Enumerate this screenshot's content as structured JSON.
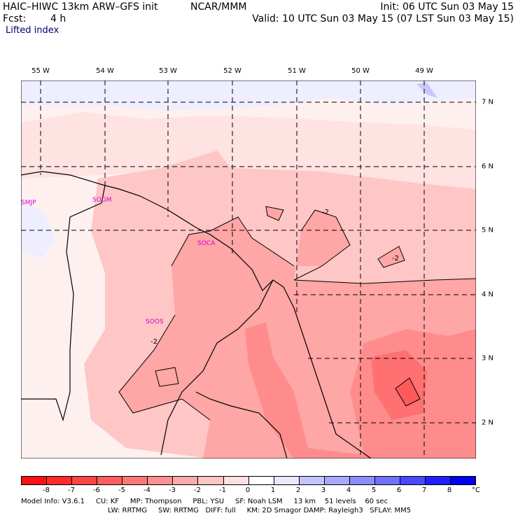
{
  "header": {
    "model_title": "HAIC–HIWC 13km ARW–GFS init",
    "org": "NCAR/MMM",
    "init": "Init: 06 UTC Sun 03 May 15",
    "fcst_label": "Fcst:",
    "fcst_value": "4 h",
    "valid": "Valid: 10 UTC Sun 03 May 15 (07 LST Sun 03 May 15)",
    "field": "Lifted index"
  },
  "map": {
    "lon_labels": [
      "55 W",
      "54 W",
      "53 W",
      "52 W",
      "51 W",
      "50 W",
      "49 W"
    ],
    "lat_labels": [
      "7 N",
      "6 N",
      "5 N",
      "4 N",
      "3 N",
      "2 N"
    ],
    "stations": [
      "SMJP",
      "SOGM",
      "SOCA",
      "SOOS"
    ],
    "contour_labels": [
      "-2",
      "-2",
      "-2"
    ]
  },
  "colorbar": {
    "labels": [
      "-8",
      "-7",
      "-6",
      "-5",
      "-4",
      "-3",
      "-2",
      "-1",
      "0",
      "1",
      "2",
      "3",
      "4",
      "5",
      "6",
      "7",
      "8"
    ],
    "unit": "°C",
    "colors": [
      "#ff1010",
      "#ff2a2a",
      "#ff4444",
      "#ff5e5e",
      "#ff7878",
      "#ff9090",
      "#ffaaaa",
      "#ffc4c4",
      "#ffe0e0",
      "#ffffff",
      "#e8e8ff",
      "#c4c4ff",
      "#a8a8ff",
      "#8c8cff",
      "#7070ff",
      "#4848ff",
      "#2020ff",
      "#0000f0"
    ]
  },
  "footer": {
    "line1": "Model Info: V3.6.1     CU: KF     MP: Thompson     PBL: YSU     SF: Noah LSM     13 km    51 levels    60 sec",
    "line2": "LW: RRTMG     SW: RRTMG   DIFF: full     KM: 2D Smagor DAMP: Rayleigh3   SFLAY: MM5"
  }
}
